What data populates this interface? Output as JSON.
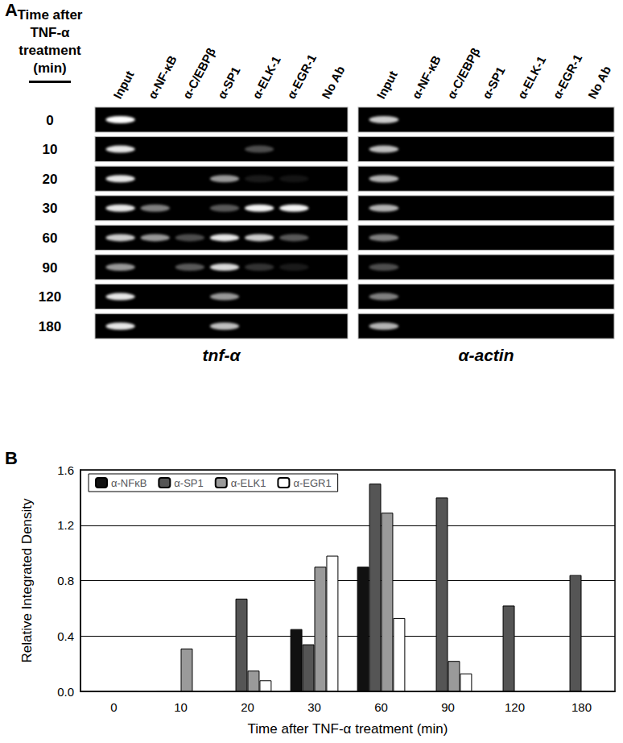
{
  "panel_a": {
    "panel_label": "A",
    "time_header": "Time after TNF-α treatment (min)",
    "times": [
      "0",
      "10",
      "20",
      "30",
      "60",
      "90",
      "120",
      "180"
    ],
    "lanes": [
      "Input",
      "α-NF-κB",
      "α-C/EBPβ",
      "α-SP1",
      "α-ELK-1",
      "α-EGR-1",
      "No Ab"
    ],
    "gels": [
      {
        "label": "tnf-α",
        "bands": [
          [
            1.0,
            0,
            0,
            0,
            0,
            0,
            0
          ],
          [
            0.9,
            0,
            0,
            0,
            0.3,
            0,
            0
          ],
          [
            0.9,
            0,
            0,
            0.6,
            0.1,
            0.08,
            0
          ],
          [
            0.9,
            0.5,
            0,
            0.35,
            0.95,
            0.95,
            0
          ],
          [
            0.8,
            0.6,
            0.3,
            0.9,
            0.8,
            0.35,
            0
          ],
          [
            0.6,
            0,
            0.35,
            0.85,
            0.2,
            0.1,
            0
          ],
          [
            0.9,
            0,
            0,
            0.6,
            0,
            0,
            0
          ],
          [
            0.9,
            0,
            0,
            0.75,
            0,
            0,
            0
          ]
        ]
      },
      {
        "label": "α-actin",
        "bands": [
          [
            0.8,
            0,
            0,
            0,
            0,
            0,
            0
          ],
          [
            0.75,
            0,
            0,
            0,
            0,
            0,
            0
          ],
          [
            0.7,
            0,
            0,
            0,
            0,
            0,
            0
          ],
          [
            0.7,
            0,
            0,
            0,
            0,
            0,
            0
          ],
          [
            0.5,
            0,
            0,
            0,
            0,
            0,
            0
          ],
          [
            0.3,
            0,
            0,
            0,
            0,
            0,
            0
          ],
          [
            0.5,
            0,
            0,
            0,
            0,
            0,
            0
          ],
          [
            0.7,
            0,
            0,
            0,
            0,
            0,
            0
          ]
        ]
      }
    ]
  },
  "chart_data": {
    "type": "bar",
    "panel_label": "B",
    "x_label": "Time after TNF-α treatment (min)",
    "y_label": "Relative Integrated Density",
    "categories": [
      "0",
      "10",
      "20",
      "30",
      "60",
      "90",
      "120",
      "180"
    ],
    "series": [
      {
        "name": "α-NFκB",
        "color": "#111111",
        "values": [
          0,
          0,
          0,
          0.45,
          0.9,
          0,
          0,
          0
        ]
      },
      {
        "name": "α-SP1",
        "color": "#555555",
        "values": [
          0,
          0,
          0.67,
          0.34,
          1.5,
          1.4,
          0.62,
          0.84
        ]
      },
      {
        "name": "α-ELK1",
        "color": "#9a9a9a",
        "values": [
          0,
          0.31,
          0.15,
          0.9,
          1.29,
          0.22,
          0,
          0
        ]
      },
      {
        "name": "α-EGR1",
        "color": "#ffffff",
        "values": [
          0,
          0,
          0.08,
          0.98,
          0.53,
          0.13,
          0,
          0
        ]
      }
    ],
    "ylim": [
      0,
      1.6
    ],
    "yticks": [
      {
        "value": 0,
        "label": "0.0"
      },
      0.4,
      0.8,
      1.2,
      1.6
    ],
    "grid": true,
    "legend": "upper left"
  }
}
